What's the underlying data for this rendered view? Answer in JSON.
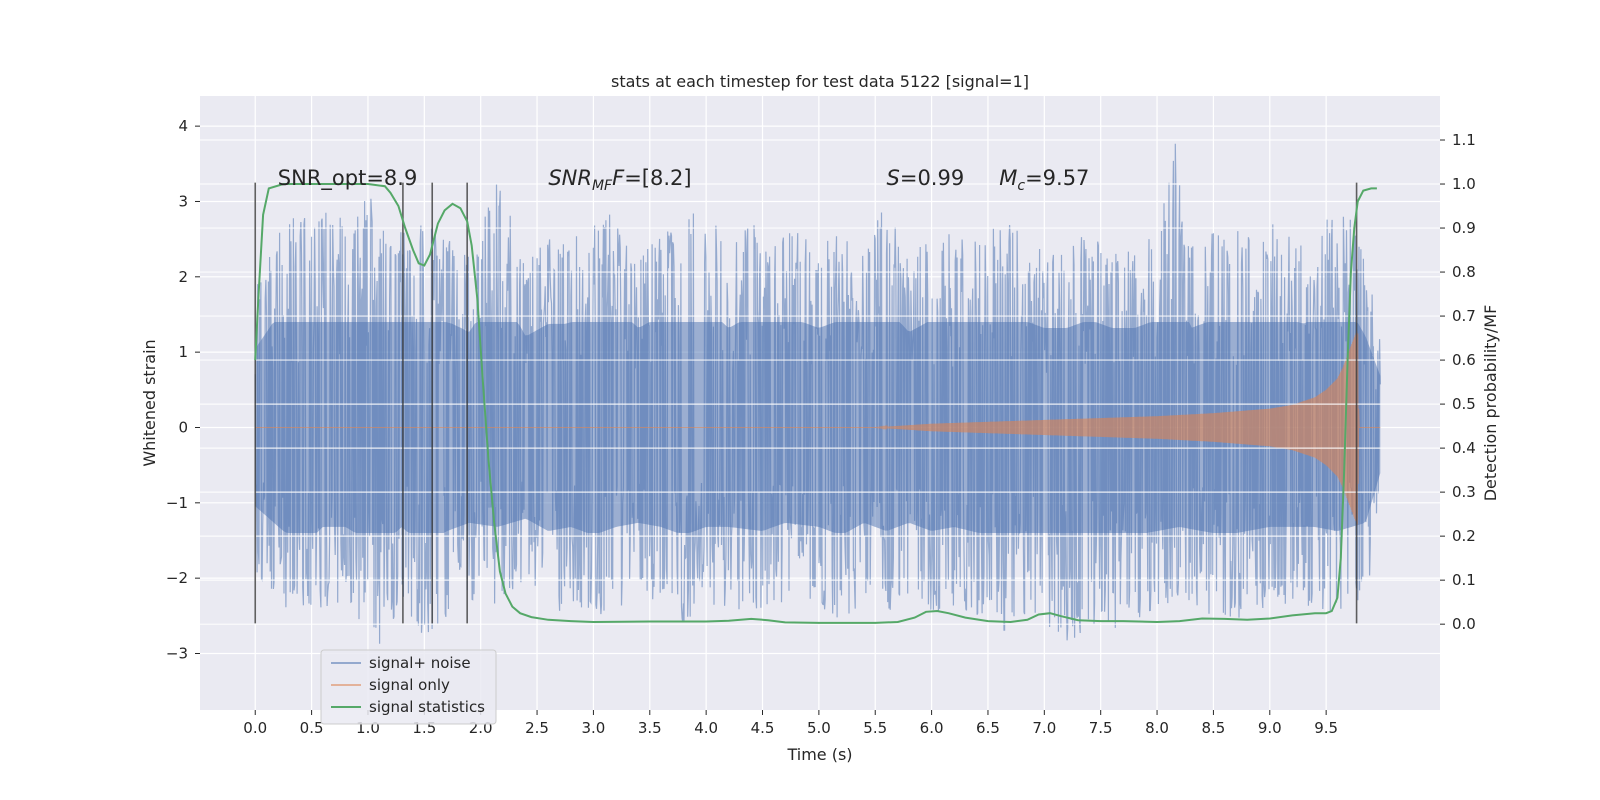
{
  "chart_data": {
    "type": "line",
    "title": "stats at each timestep for test data 5122 [signal=1]",
    "xlabel": "Time (s)",
    "ylabel": "Whitened strain",
    "y2label": "Detection probability/MF",
    "xlim": [
      -0.49,
      10.51
    ],
    "ylim": [
      -3.75,
      4.4
    ],
    "y2lim": [
      -0.195,
      1.2
    ],
    "xticks": [
      0.0,
      0.5,
      1.0,
      1.5,
      2.0,
      2.5,
      3.0,
      3.5,
      4.0,
      4.5,
      5.0,
      5.5,
      6.0,
      6.5,
      7.0,
      7.5,
      8.0,
      8.5,
      9.0,
      9.5
    ],
    "xtick_labels": [
      "0.0",
      "0.5",
      "1.0",
      "1.5",
      "2.0",
      "2.5",
      "3.0",
      "3.5",
      "4.0",
      "4.5",
      "5.0",
      "5.5",
      "6.0",
      "6.5",
      "7.0",
      "7.5",
      "8.0",
      "8.5",
      "9.0",
      "9.5"
    ],
    "yticks": [
      -3,
      -2,
      -1,
      0,
      1,
      2,
      3,
      4
    ],
    "ytick_labels": [
      "−3",
      "−2",
      "−1",
      "0",
      "1",
      "2",
      "3",
      "4"
    ],
    "y2ticks": [
      0.0,
      0.1,
      0.2,
      0.3,
      0.4,
      0.5,
      0.6,
      0.7,
      0.8,
      0.9,
      1.0,
      1.1
    ],
    "y2tick_labels": [
      "0.0",
      "0.1",
      "0.2",
      "0.3",
      "0.4",
      "0.5",
      "0.6",
      "0.7",
      "0.8",
      "0.9",
      "1.0",
      "1.1"
    ],
    "grid": true,
    "legend_position": "lower-left",
    "series": [
      {
        "name": "signal+ noise",
        "axis": "left",
        "color": "#4c72b0",
        "t_range": [
          0.0,
          9.98
        ],
        "envelope_upper": [
          [
            0.0,
            1.9
          ],
          [
            0.25,
            2.9
          ],
          [
            0.4,
            2.8
          ],
          [
            0.6,
            2.9
          ],
          [
            0.8,
            2.8
          ],
          [
            1.0,
            3.1
          ],
          [
            1.25,
            2.6
          ],
          [
            1.5,
            2.7
          ],
          [
            1.75,
            2.5
          ],
          [
            1.9,
            2.3
          ],
          [
            2.15,
            3.4
          ],
          [
            2.4,
            2.2
          ],
          [
            2.6,
            2.5
          ],
          [
            2.75,
            2.5
          ],
          [
            3.0,
            2.7
          ],
          [
            3.2,
            2.9
          ],
          [
            3.4,
            2.4
          ],
          [
            3.6,
            2.7
          ],
          [
            3.8,
            2.8
          ],
          [
            4.0,
            2.9
          ],
          [
            4.2,
            2.4
          ],
          [
            4.4,
            2.7
          ],
          [
            4.6,
            2.6
          ],
          [
            4.8,
            2.6
          ],
          [
            5.0,
            2.4
          ],
          [
            5.2,
            2.6
          ],
          [
            5.4,
            2.6
          ],
          [
            5.55,
            3.05
          ],
          [
            5.8,
            2.3
          ],
          [
            6.0,
            2.6
          ],
          [
            6.2,
            2.6
          ],
          [
            6.5,
            2.6
          ],
          [
            6.65,
            2.85
          ],
          [
            6.8,
            2.6
          ],
          [
            7.0,
            2.4
          ],
          [
            7.2,
            2.4
          ],
          [
            7.4,
            2.6
          ],
          [
            7.6,
            2.4
          ],
          [
            7.8,
            2.4
          ],
          [
            8.0,
            2.6
          ],
          [
            8.15,
            4.05
          ],
          [
            8.3,
            2.4
          ],
          [
            8.5,
            2.6
          ],
          [
            8.7,
            2.6
          ],
          [
            8.9,
            2.7
          ],
          [
            9.1,
            2.7
          ],
          [
            9.3,
            2.5
          ],
          [
            9.5,
            2.9
          ],
          [
            9.7,
            2.9
          ],
          [
            9.85,
            2.2
          ],
          [
            9.98,
            1.25
          ]
        ],
        "envelope_lower": [
          [
            0.0,
            -1.9
          ],
          [
            0.25,
            -2.5
          ],
          [
            0.45,
            -2.8
          ],
          [
            0.6,
            -2.4
          ],
          [
            0.8,
            -2.4
          ],
          [
            1.1,
            -2.9
          ],
          [
            1.3,
            -2.4
          ],
          [
            1.5,
            -2.9
          ],
          [
            1.7,
            -2.5
          ],
          [
            1.9,
            -2.3
          ],
          [
            2.15,
            -2.4
          ],
          [
            2.4,
            -2.2
          ],
          [
            2.6,
            -2.5
          ],
          [
            2.8,
            -2.4
          ],
          [
            3.0,
            -2.6
          ],
          [
            3.2,
            -2.4
          ],
          [
            3.4,
            -2.3
          ],
          [
            3.6,
            -2.4
          ],
          [
            3.8,
            -2.6
          ],
          [
            4.0,
            -2.4
          ],
          [
            4.2,
            -2.4
          ],
          [
            4.5,
            -2.5
          ],
          [
            4.7,
            -2.3
          ],
          [
            5.0,
            -2.4
          ],
          [
            5.2,
            -2.6
          ],
          [
            5.4,
            -2.3
          ],
          [
            5.6,
            -2.5
          ],
          [
            5.8,
            -2.3
          ],
          [
            6.0,
            -2.5
          ],
          [
            6.2,
            -2.4
          ],
          [
            6.5,
            -2.6
          ],
          [
            6.7,
            -2.8
          ],
          [
            6.9,
            -2.7
          ],
          [
            7.05,
            -2.8
          ],
          [
            7.2,
            -3.0
          ],
          [
            7.4,
            -2.6
          ],
          [
            7.6,
            -2.7
          ],
          [
            7.8,
            -2.6
          ],
          [
            8.0,
            -2.5
          ],
          [
            8.2,
            -2.4
          ],
          [
            8.4,
            -2.5
          ],
          [
            8.6,
            -2.6
          ],
          [
            8.8,
            -2.5
          ],
          [
            9.0,
            -2.4
          ],
          [
            9.2,
            -2.4
          ],
          [
            9.4,
            -2.4
          ],
          [
            9.6,
            -2.5
          ],
          [
            9.85,
            -2.3
          ],
          [
            9.98,
            -1.1
          ]
        ]
      },
      {
        "name": "signal only",
        "axis": "left",
        "color": "#dd8452",
        "amplitude_envelope": [
          [
            0.0,
            0.0
          ],
          [
            5.5,
            0.0
          ],
          [
            6.0,
            0.05
          ],
          [
            7.0,
            0.1
          ],
          [
            8.0,
            0.15
          ],
          [
            8.5,
            0.19
          ],
          [
            9.0,
            0.25
          ],
          [
            9.2,
            0.3
          ],
          [
            9.4,
            0.4
          ],
          [
            9.5,
            0.5
          ],
          [
            9.6,
            0.65
          ],
          [
            9.65,
            0.8
          ],
          [
            9.7,
            1.0
          ],
          [
            9.75,
            1.2
          ],
          [
            9.78,
            1.3
          ],
          [
            9.79,
            0.0
          ],
          [
            9.98,
            0.0
          ]
        ]
      },
      {
        "name": "signal statistics",
        "axis": "right",
        "color": "#55a868",
        "points": [
          [
            0.0,
            0.6
          ],
          [
            0.03,
            0.75
          ],
          [
            0.07,
            0.93
          ],
          [
            0.12,
            0.99
          ],
          [
            0.25,
            1.0
          ],
          [
            0.5,
            1.0
          ],
          [
            0.75,
            1.0
          ],
          [
            1.0,
            1.0
          ],
          [
            1.15,
            0.995
          ],
          [
            1.2,
            0.98
          ],
          [
            1.27,
            0.95
          ],
          [
            1.33,
            0.9
          ],
          [
            1.4,
            0.85
          ],
          [
            1.45,
            0.82
          ],
          [
            1.5,
            0.815
          ],
          [
            1.55,
            0.84
          ],
          [
            1.62,
            0.91
          ],
          [
            1.68,
            0.94
          ],
          [
            1.75,
            0.955
          ],
          [
            1.82,
            0.945
          ],
          [
            1.88,
            0.915
          ],
          [
            1.92,
            0.86
          ],
          [
            1.97,
            0.74
          ],
          [
            2.02,
            0.55
          ],
          [
            2.07,
            0.37
          ],
          [
            2.12,
            0.23
          ],
          [
            2.17,
            0.12
          ],
          [
            2.22,
            0.07
          ],
          [
            2.28,
            0.04
          ],
          [
            2.35,
            0.025
          ],
          [
            2.45,
            0.016
          ],
          [
            2.6,
            0.01
          ],
          [
            2.8,
            0.007
          ],
          [
            3.0,
            0.005
          ],
          [
            3.5,
            0.006
          ],
          [
            4.0,
            0.006
          ],
          [
            4.2,
            0.008
          ],
          [
            4.4,
            0.012
          ],
          [
            4.55,
            0.009
          ],
          [
            4.7,
            0.004
          ],
          [
            5.0,
            0.003
          ],
          [
            5.5,
            0.003
          ],
          [
            5.7,
            0.005
          ],
          [
            5.85,
            0.015
          ],
          [
            5.95,
            0.028
          ],
          [
            6.05,
            0.03
          ],
          [
            6.15,
            0.025
          ],
          [
            6.3,
            0.015
          ],
          [
            6.5,
            0.007
          ],
          [
            6.7,
            0.005
          ],
          [
            6.85,
            0.01
          ],
          [
            6.95,
            0.022
          ],
          [
            7.05,
            0.025
          ],
          [
            7.15,
            0.018
          ],
          [
            7.3,
            0.009
          ],
          [
            7.5,
            0.007
          ],
          [
            7.7,
            0.007
          ],
          [
            8.0,
            0.005
          ],
          [
            8.2,
            0.007
          ],
          [
            8.4,
            0.013
          ],
          [
            8.6,
            0.012
          ],
          [
            8.8,
            0.01
          ],
          [
            9.0,
            0.013
          ],
          [
            9.2,
            0.02
          ],
          [
            9.4,
            0.025
          ],
          [
            9.5,
            0.025
          ],
          [
            9.55,
            0.03
          ],
          [
            9.6,
            0.06
          ],
          [
            9.63,
            0.15
          ],
          [
            9.66,
            0.35
          ],
          [
            9.69,
            0.6
          ],
          [
            9.72,
            0.8
          ],
          [
            9.75,
            0.9
          ],
          [
            9.78,
            0.96
          ],
          [
            9.83,
            0.985
          ],
          [
            9.9,
            0.99
          ],
          [
            9.95,
            0.99
          ]
        ]
      }
    ],
    "vertical_lines": [
      {
        "x": 0.0,
        "y_from": -2.6,
        "y_to": 3.25
      },
      {
        "x": 1.31,
        "y_from": -2.6,
        "y_to": 3.25
      },
      {
        "x": 1.57,
        "y_from": -2.6,
        "y_to": 3.25
      },
      {
        "x": 1.88,
        "y_from": -2.6,
        "y_to": 3.25
      },
      {
        "x": 9.77,
        "y_from": -2.6,
        "y_to": 3.25
      }
    ],
    "annotations": [
      {
        "id": "snr-opt",
        "x": 0.2,
        "y": 3.22,
        "parts": [
          {
            "text": "SNR_opt=8.9"
          }
        ]
      },
      {
        "id": "snr-mf",
        "x": 2.6,
        "y": 3.22,
        "parts": [
          {
            "text": "SNR",
            "italic": true
          },
          {
            "text": "MF",
            "italic": true,
            "sub": true
          },
          {
            "text": "F",
            "italic": true
          },
          {
            "text": "=[8.2]"
          }
        ]
      },
      {
        "id": "s-value",
        "x": 5.6,
        "y": 3.22,
        "parts": [
          {
            "text": "S",
            "italic": true
          },
          {
            "text": "=0.99"
          }
        ]
      },
      {
        "id": "mc-value",
        "x": 6.6,
        "y": 3.22,
        "parts": [
          {
            "text": "M",
            "italic": true
          },
          {
            "text": "c",
            "italic": true,
            "sub": true
          },
          {
            "text": "=9.57"
          }
        ]
      }
    ]
  }
}
